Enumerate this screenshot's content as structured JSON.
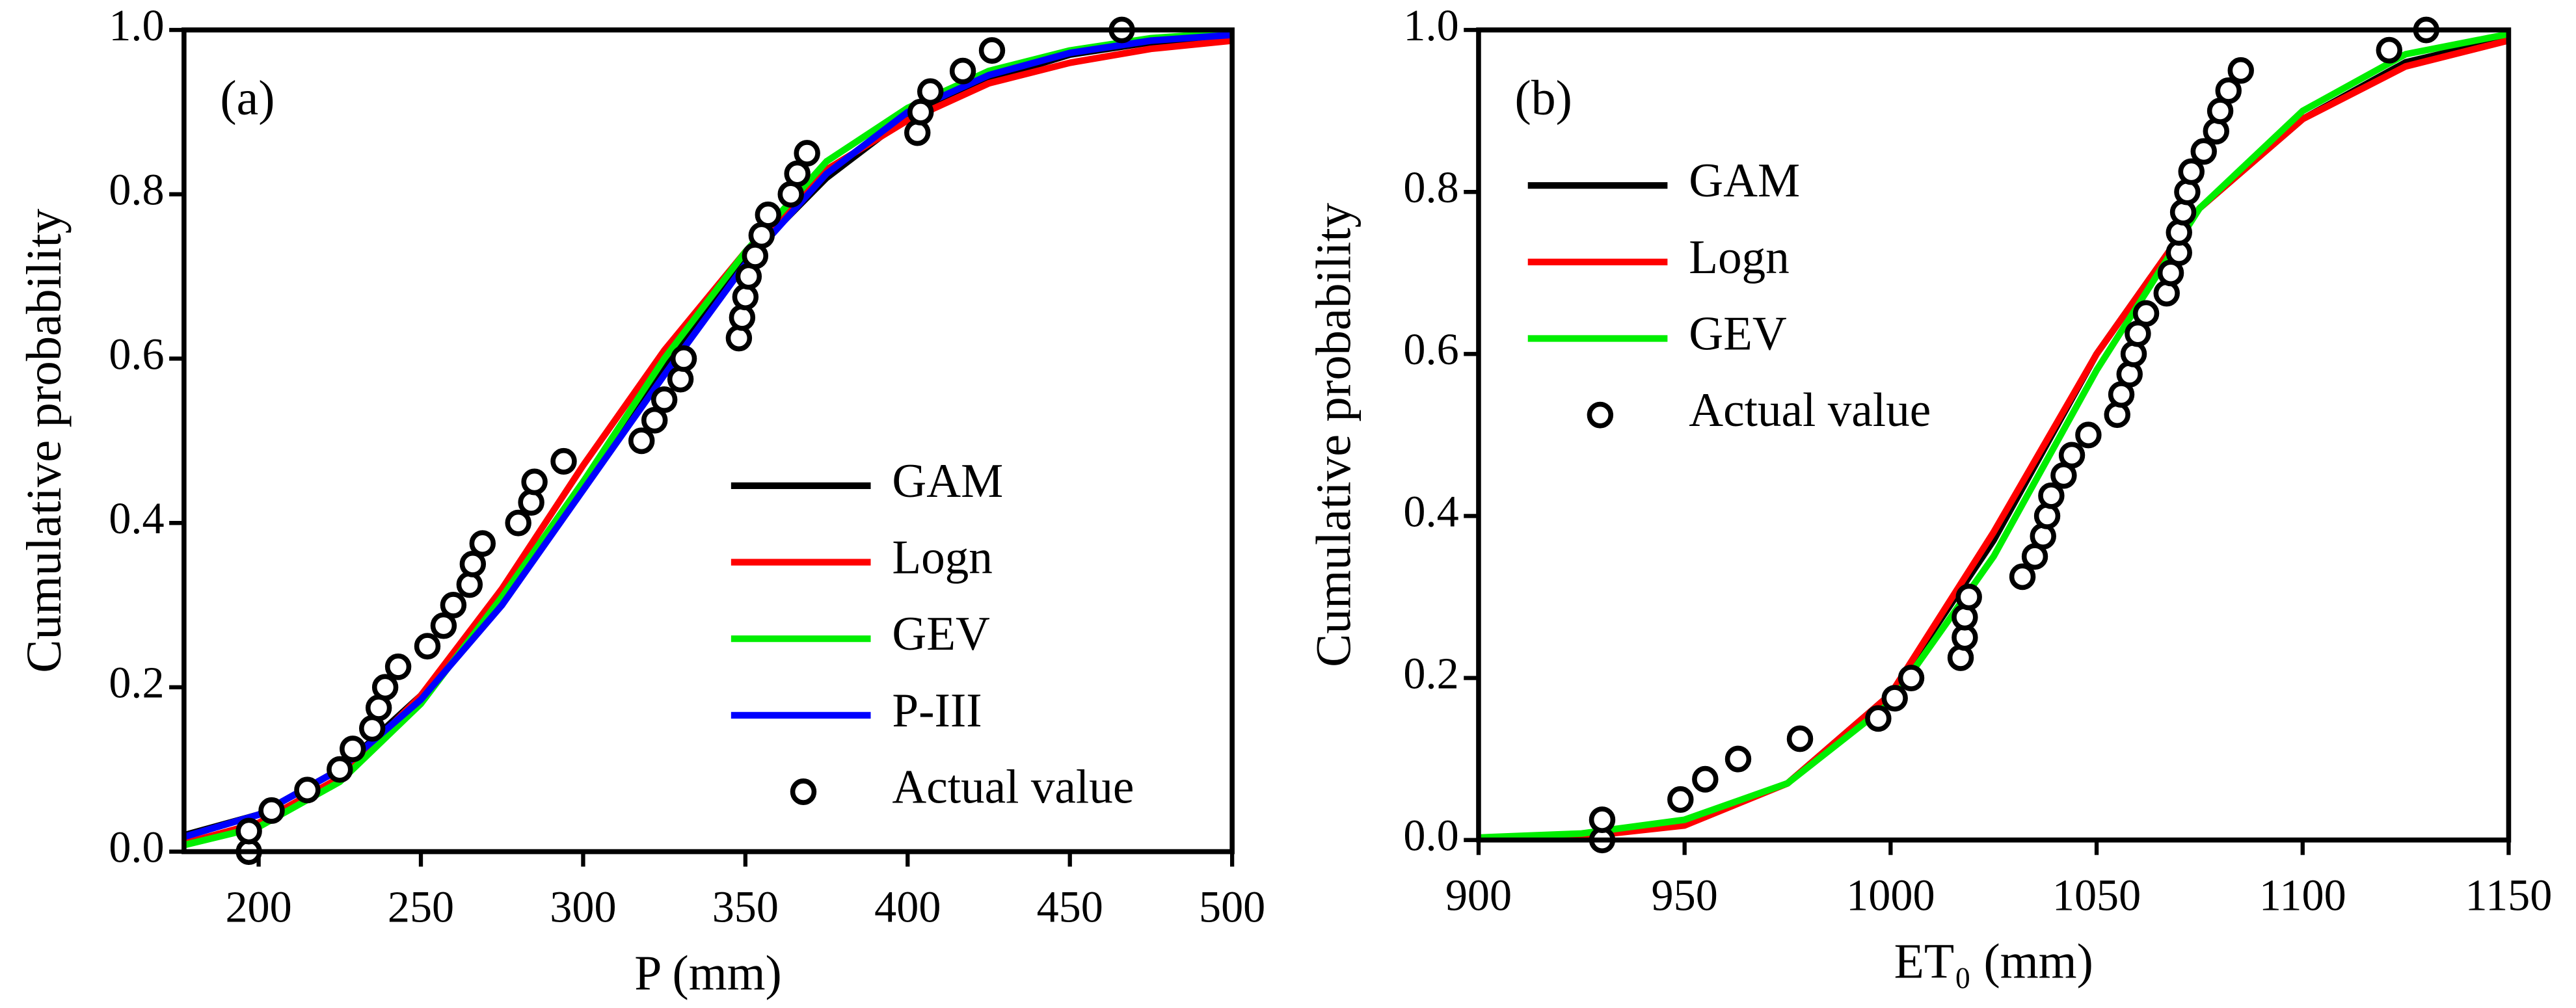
{
  "chart_data": [
    {
      "type": "line",
      "panel_label": "(a)",
      "xlabel": "P (mm)",
      "ylabel": "Cumulative probability",
      "xlim": [
        177,
        500
      ],
      "xticks": [
        200,
        250,
        300,
        350,
        400,
        450,
        500
      ],
      "ylim": [
        0,
        1
      ],
      "yticks": [
        {
          "value": 0,
          "label": "0.0"
        },
        0.2,
        0.4,
        0.6,
        0.8,
        {
          "value": 1,
          "label": "1.0"
        }
      ],
      "legend": "lower right",
      "series": [
        {
          "name": "GAM",
          "color": "#000000",
          "x": [
            177,
            200,
            225,
            250,
            275,
            300,
            325,
            350,
            375,
            400,
            425,
            450,
            475,
            500
          ],
          "values": [
            0.02,
            0.045,
            0.1,
            0.19,
            0.31,
            0.45,
            0.59,
            0.72,
            0.82,
            0.895,
            0.94,
            0.97,
            0.985,
            0.993
          ]
        },
        {
          "name": "Logn",
          "color": "#ff0000",
          "x": [
            177,
            200,
            225,
            250,
            275,
            300,
            325,
            350,
            375,
            400,
            425,
            450,
            475,
            500
          ],
          "values": [
            0.01,
            0.035,
            0.09,
            0.19,
            0.32,
            0.47,
            0.61,
            0.73,
            0.83,
            0.89,
            0.935,
            0.96,
            0.977,
            0.987
          ]
        },
        {
          "name": "GEV",
          "color": "#00ee00",
          "x": [
            177,
            200,
            225,
            250,
            275,
            300,
            325,
            350,
            375,
            400,
            425,
            450,
            475,
            500
          ],
          "values": [
            0.008,
            0.03,
            0.085,
            0.18,
            0.31,
            0.45,
            0.6,
            0.73,
            0.84,
            0.905,
            0.95,
            0.975,
            0.99,
            0.997
          ]
        },
        {
          "name": "P-III",
          "color": "#0000ff",
          "x": [
            177,
            200,
            225,
            250,
            275,
            300,
            325,
            350,
            375,
            400,
            425,
            450,
            475,
            500
          ],
          "values": [
            0.018,
            0.045,
            0.1,
            0.185,
            0.3,
            0.44,
            0.58,
            0.715,
            0.825,
            0.9,
            0.945,
            0.972,
            0.987,
            0.994
          ]
        },
        {
          "name": "Actual value",
          "type": "scatter",
          "color": "#000000",
          "x": [
            197,
            197,
            204,
            215,
            225,
            229,
            235,
            237,
            239,
            243,
            252,
            257,
            260,
            265,
            266,
            269,
            280,
            284,
            285,
            294,
            318,
            322,
            325,
            330,
            331,
            348,
            349,
            350,
            351,
            353,
            355,
            357,
            364,
            366,
            369,
            403,
            404,
            407,
            417,
            426,
            466
          ],
          "values": [
            0,
            0.025,
            0.05,
            0.075,
            0.1,
            0.125,
            0.15,
            0.175,
            0.2,
            0.225,
            0.25,
            0.275,
            0.3,
            0.325,
            0.35,
            0.375,
            0.4,
            0.425,
            0.45,
            0.475,
            0.5,
            0.525,
            0.55,
            0.575,
            0.6,
            0.625,
            0.65,
            0.675,
            0.7,
            0.725,
            0.75,
            0.775,
            0.8,
            0.825,
            0.85,
            0.875,
            0.9,
            0.925,
            0.95,
            0.975,
            1
          ]
        }
      ]
    },
    {
      "type": "line",
      "panel_label": "(b)",
      "xlabel": "ET₀ (mm)",
      "ylabel": "Cumulative probability",
      "xlim": [
        900,
        1150
      ],
      "xticks": [
        900,
        950,
        1000,
        1050,
        1100,
        1150
      ],
      "ylim": [
        0,
        1
      ],
      "yticks": [
        {
          "value": 0,
          "label": "0.0"
        },
        0.2,
        0.4,
        0.6,
        0.8,
        {
          "value": 1,
          "label": "1.0"
        }
      ],
      "legend": "center left",
      "series": [
        {
          "name": "GAM",
          "color": "#000000",
          "x": [
            900,
            925,
            950,
            975,
            1000,
            1025,
            1050,
            1075,
            1100,
            1125,
            1150
          ],
          "values": [
            0.002,
            0.005,
            0.02,
            0.07,
            0.18,
            0.37,
            0.6,
            0.78,
            0.89,
            0.96,
            0.99
          ]
        },
        {
          "name": "Logn",
          "color": "#ff0000",
          "x": [
            900,
            925,
            950,
            975,
            1000,
            1025,
            1050,
            1075,
            1100,
            1125,
            1150
          ],
          "values": [
            0.001,
            0.004,
            0.018,
            0.07,
            0.18,
            0.38,
            0.6,
            0.78,
            0.89,
            0.955,
            0.987
          ]
        },
        {
          "name": "GEV",
          "color": "#00ee00",
          "x": [
            900,
            925,
            950,
            975,
            1000,
            1025,
            1050,
            1075,
            1100,
            1125,
            1150
          ],
          "values": [
            0.003,
            0.008,
            0.025,
            0.07,
            0.17,
            0.35,
            0.58,
            0.78,
            0.9,
            0.97,
            0.995
          ]
        },
        {
          "name": "Actual value",
          "type": "scatter",
          "color": "#000000",
          "x": [
            930,
            930,
            949,
            955,
            963,
            978,
            997,
            1001,
            1005,
            1017,
            1018,
            1018,
            1019,
            1032,
            1035,
            1037,
            1038,
            1039,
            1042,
            1044,
            1048,
            1055,
            1056,
            1058,
            1059,
            1060,
            1062,
            1067,
            1068,
            1070,
            1070,
            1071,
            1072,
            1073,
            1076,
            1079,
            1080,
            1082,
            1085,
            1121,
            1130
          ],
          "values": [
            0,
            0.025,
            0.05,
            0.075,
            0.1,
            0.125,
            0.15,
            0.175,
            0.2,
            0.225,
            0.25,
            0.275,
            0.3,
            0.325,
            0.35,
            0.375,
            0.4,
            0.425,
            0.45,
            0.475,
            0.5,
            0.525,
            0.55,
            0.575,
            0.6,
            0.625,
            0.65,
            0.675,
            0.7,
            0.725,
            0.75,
            0.775,
            0.8,
            0.825,
            0.85,
            0.875,
            0.9,
            0.925,
            0.95,
            0.975,
            1
          ]
        }
      ]
    }
  ]
}
